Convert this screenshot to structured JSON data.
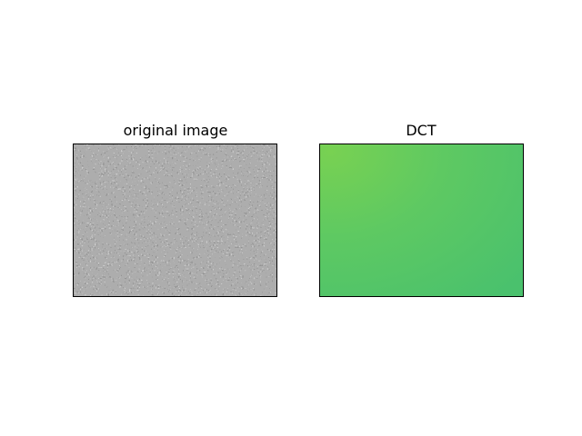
{
  "chart_data": [
    {
      "type": "heatmap",
      "title": "original image",
      "colormap": "gray",
      "content": "random noise",
      "colors": [
        "#4d4d4d",
        "#9a9a9a"
      ],
      "axes_visible": false
    },
    {
      "type": "heatmap",
      "title": "DCT",
      "colormap": "viridis",
      "colors": {
        "top_left": "#78d152",
        "center": "#5ec962",
        "bottom_right": "#4ac16d"
      },
      "axes_visible": false
    }
  ]
}
